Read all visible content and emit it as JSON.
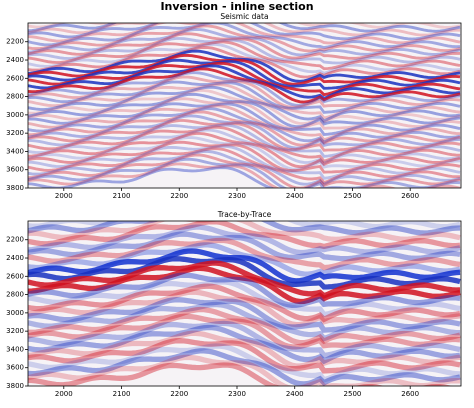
{
  "title": "Inversion - inline section",
  "chart_data": [
    {
      "type": "heatmap",
      "title": "Seismic data",
      "xlim": [
        1938,
        2688
      ],
      "xticks": [
        2000,
        2100,
        2200,
        2300,
        2400,
        2500,
        2600
      ],
      "ylim": [
        3800,
        1995
      ],
      "yticks": [
        2200,
        2400,
        2600,
        2800,
        3000,
        3200,
        3400,
        3600,
        3800
      ]
    },
    {
      "type": "heatmap",
      "title": "Trace-by-Trace",
      "xlim": [
        1938,
        2688
      ],
      "xticks": [
        2000,
        2100,
        2200,
        2300,
        2400,
        2500,
        2600
      ],
      "ylim": [
        3800,
        1995
      ],
      "yticks": [
        2200,
        2400,
        2600,
        2800,
        3000,
        3200,
        3400,
        3600,
        3800
      ]
    }
  ]
}
